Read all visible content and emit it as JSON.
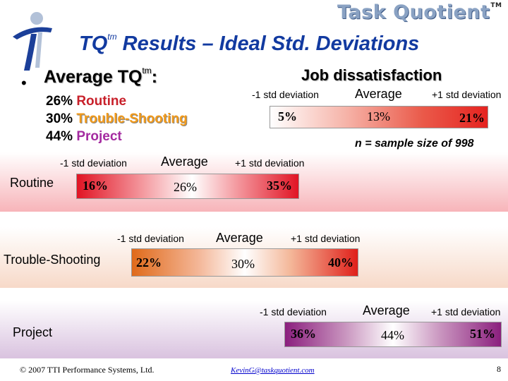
{
  "header": {
    "brand": "Task Quotient",
    "brand_tm": "TM",
    "title_tq": "TQ",
    "title_tm": "tm",
    "title_rest": " Results – Ideal Std. Deviations"
  },
  "average": {
    "bullet": "•",
    "heading": "Average TQ",
    "heading_tm": "tm",
    "heading_colon": ":",
    "mix": [
      {
        "pct": "26%",
        "label": "Routine"
      },
      {
        "pct": "30%",
        "label": "Trouble-Shooting"
      },
      {
        "pct": "44%",
        "label": "Project"
      }
    ]
  },
  "job_dissatisfaction": {
    "title": "Job dissatisfaction",
    "minus_label": "-1 std deviation",
    "avg_label": "Average",
    "plus_label": "+1 std deviation",
    "minus_value": "5%",
    "avg_value": "13%",
    "plus_value": "21%",
    "note": "n = sample size of 998"
  },
  "rows": [
    {
      "name": "Routine",
      "minus_label": "-1 std deviation",
      "avg_label": "Average",
      "plus_label": "+1 std deviation",
      "minus": "16%",
      "avg": "26%",
      "plus": "35%",
      "color": "#e11424"
    },
    {
      "name": "Trouble-Shooting",
      "minus_label": "-1 std deviation",
      "avg_label": "Average",
      "plus_label": "+1 std deviation",
      "minus": "22%",
      "avg": "30%",
      "plus": "40%",
      "color": "#e06a1a"
    },
    {
      "name": "Project",
      "minus_label": "-1 std deviation",
      "avg_label": "Average",
      "plus_label": "+1 std deviation",
      "minus": "36%",
      "avg": "44%",
      "plus": "51%",
      "color": "#8b1f7e"
    }
  ],
  "footer": {
    "copyright": "© 2007 TTI Performance Systems, Ltd.",
    "email": "KevinG@taskquotient.com",
    "page": "8"
  },
  "colors": {
    "title_blue": "#123aa0",
    "jd_bar": "#e52320"
  }
}
